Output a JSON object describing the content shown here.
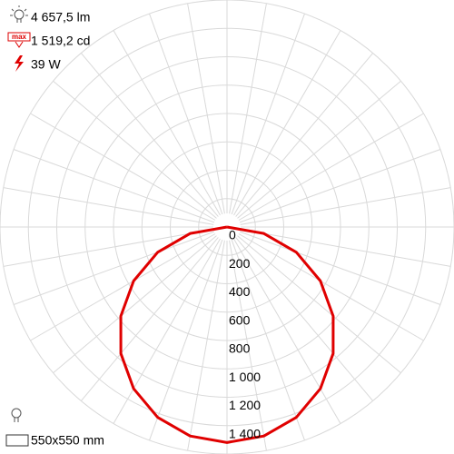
{
  "chart_data": {
    "type": "polar",
    "info": {
      "flux": "4 657,5 lm",
      "max_intensity": "1 519,2 cd",
      "power": "39 W",
      "size": "550x550 mm"
    },
    "angles": [
      -90,
      -80,
      -70,
      -60,
      -50,
      -40,
      -30,
      -20,
      -10,
      0,
      10,
      20,
      30,
      40,
      50,
      60,
      70,
      80,
      90
    ],
    "series": [
      {
        "color": "#e00000",
        "values": [
          0,
          264,
          520,
          760,
          977,
          1164,
          1316,
          1428,
          1496,
          1519,
          1496,
          1428,
          1316,
          1164,
          977,
          760,
          520,
          264,
          0
        ]
      }
    ],
    "rlim": [
      0,
      1600
    ],
    "rticks": [
      0,
      200,
      400,
      600,
      800,
      {
        "value": 1000,
        "label": "1 000"
      },
      {
        "value": 1200,
        "label": "1 200"
      },
      {
        "value": 1400,
        "label": "1 400"
      }
    ],
    "grid": true
  }
}
